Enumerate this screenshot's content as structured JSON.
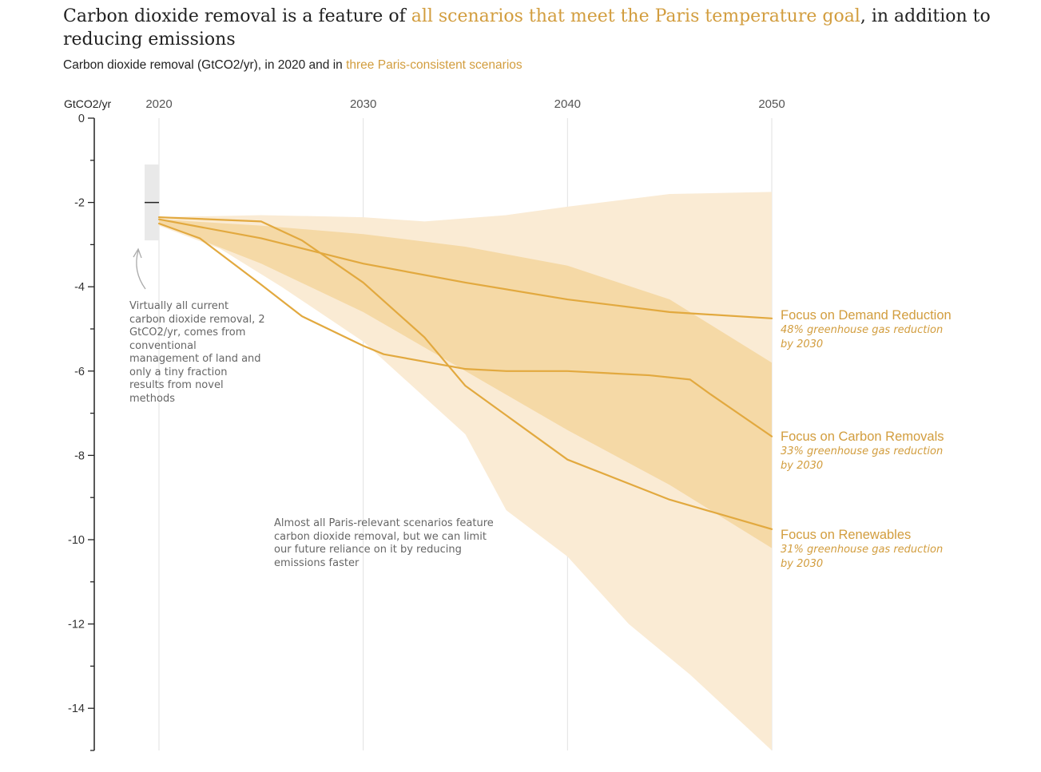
{
  "title": {
    "part1": "Carbon dioxide removal is a feature of ",
    "highlight": "all scenarios that meet the Paris temperature goal",
    "part2": ", in addition to reducing emissions"
  },
  "subtitle": {
    "part1": "Carbon dioxide removal (GtCO2/yr), in 2020 and in ",
    "highlight": "three Paris-consistent scenarios"
  },
  "notes": {
    "current": "Virtually all current carbon dioxide removal, 2 GtCO2/yr, comes from conventional management of land and only a tiny fraction results from novel methods",
    "scenarios": "Almost all Paris-relevant scenarios feature carbon dioxide removal, but we can limit our future reliance on it by reducing emissions faster"
  },
  "colors": {
    "accent": "#d29d3e",
    "line": "#e2a93f",
    "outer_band": "#faebd4",
    "inner_band": "#f5d9a6",
    "current_range": "#e9e9e9"
  },
  "chart_data": {
    "type": "area",
    "ylabel": "GtCO2/yr",
    "xlim": [
      2020,
      2050
    ],
    "ylim": [
      -15,
      0
    ],
    "x_ticks": [
      2020,
      2030,
      2040,
      2050
    ],
    "y_ticks": [
      0,
      -2,
      -4,
      -6,
      -8,
      -10,
      -12,
      -14
    ],
    "grid": true,
    "current_2020": {
      "value": -2,
      "range": [
        -1.1,
        -2.9
      ]
    },
    "bands": [
      {
        "name": "outer",
        "upper": [
          [
            2020,
            -2.35
          ],
          [
            2025,
            -2.3
          ],
          [
            2030,
            -2.35
          ],
          [
            2033,
            -2.45
          ],
          [
            2037,
            -2.3
          ],
          [
            2040,
            -2.1
          ],
          [
            2045,
            -1.8
          ],
          [
            2050,
            -1.75
          ]
        ],
        "lower": [
          [
            2020,
            -2.55
          ],
          [
            2023,
            -3.1
          ],
          [
            2026,
            -4.0
          ],
          [
            2030,
            -5.3
          ],
          [
            2035,
            -7.5
          ],
          [
            2037,
            -9.3
          ],
          [
            2040,
            -10.4
          ],
          [
            2043,
            -12.0
          ],
          [
            2046,
            -13.2
          ],
          [
            2050,
            -15.0
          ]
        ]
      },
      {
        "name": "inner",
        "upper": [
          [
            2020,
            -2.4
          ],
          [
            2025,
            -2.55
          ],
          [
            2030,
            -2.75
          ],
          [
            2035,
            -3.05
          ],
          [
            2040,
            -3.5
          ],
          [
            2045,
            -4.3
          ],
          [
            2050,
            -5.8
          ]
        ],
        "lower": [
          [
            2020,
            -2.5
          ],
          [
            2025,
            -3.45
          ],
          [
            2030,
            -4.6
          ],
          [
            2035,
            -6.0
          ],
          [
            2040,
            -7.4
          ],
          [
            2045,
            -8.7
          ],
          [
            2050,
            -10.2
          ]
        ]
      }
    ],
    "series": [
      {
        "name": "Focus on Demand Reduction",
        "description": "48% greenhouse gas reduction by 2030",
        "points": [
          [
            2020,
            -2.4
          ],
          [
            2025,
            -2.85
          ],
          [
            2030,
            -3.45
          ],
          [
            2035,
            -3.9
          ],
          [
            2040,
            -4.3
          ],
          [
            2045,
            -4.6
          ],
          [
            2050,
            -4.75
          ]
        ]
      },
      {
        "name": "Focus on Renewables",
        "description": "31% greenhouse gas reduction by 2030",
        "points": [
          [
            2020,
            -2.35
          ],
          [
            2025,
            -2.45
          ],
          [
            2027,
            -2.9
          ],
          [
            2030,
            -3.9
          ],
          [
            2033,
            -5.2
          ],
          [
            2035,
            -6.35
          ],
          [
            2040,
            -8.1
          ],
          [
            2045,
            -9.05
          ],
          [
            2050,
            -9.75
          ]
        ]
      },
      {
        "name": "Focus on Carbon Removals",
        "description": "33% greenhouse gas reduction by 2030",
        "points": [
          [
            2020,
            -2.5
          ],
          [
            2022,
            -2.85
          ],
          [
            2025,
            -3.95
          ],
          [
            2027,
            -4.7
          ],
          [
            2030,
            -5.4
          ],
          [
            2031,
            -5.6
          ],
          [
            2035,
            -5.95
          ],
          [
            2037,
            -6.0
          ],
          [
            2040,
            -6.0
          ],
          [
            2044,
            -6.1
          ],
          [
            2046,
            -6.2
          ],
          [
            2047,
            -6.55
          ],
          [
            2050,
            -7.55
          ]
        ]
      }
    ]
  }
}
